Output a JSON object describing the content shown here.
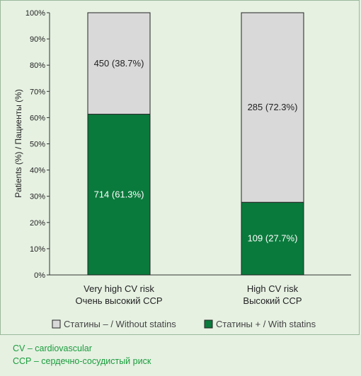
{
  "chart_data": {
    "type": "bar",
    "stacked": true,
    "categories": [
      [
        "Very high CV risk",
        "Очень высокий ССР"
      ],
      [
        "High CV risk",
        "Высокий ССР"
      ]
    ],
    "series": [
      {
        "name": "Статины +  / With statins",
        "color": "#0a7a3c",
        "values": [
          61.3,
          27.7
        ],
        "labels": [
          "714 (61.3%)",
          "109 (27.7%)"
        ]
      },
      {
        "name": "Статины –  / Without statins",
        "color": "#d9d9d9",
        "values": [
          38.7,
          72.3
        ],
        "labels": [
          "450 (38.7%)",
          "285 (72.3%)"
        ]
      }
    ],
    "ylabel": "Patients (%) / Пациенты (%)",
    "ylim": [
      0,
      100
    ],
    "yticks": [
      "0%",
      "10%",
      "20%",
      "30%",
      "40%",
      "50%",
      "60%",
      "70%",
      "80%",
      "90%",
      "100%"
    ],
    "grid": false,
    "legend_position": "bottom"
  },
  "footnotes": [
    "CV – cardiovascular",
    "ССР – сердечно-сосудистый риск"
  ]
}
